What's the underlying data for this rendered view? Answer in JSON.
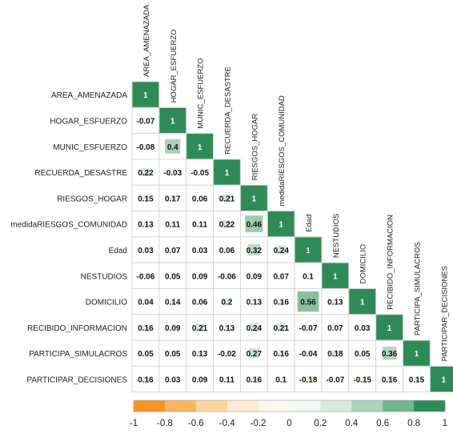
{
  "chart_data": {
    "type": "heatmap",
    "variables": [
      "AREA_AMENAZADA",
      "HOGAR_ESFUERZO",
      "MUNIC_ESFUERZO",
      "RECUERDA_DESASTRE",
      "RIESGOS_HOGAR",
      "medidaRIESGOS_COMUNIDAD",
      "Edad",
      "NESTUDIOS",
      "DOMICILIO",
      "RECIBIDO_INFORMACION",
      "PARTICIPA_SIMULACROS",
      "PARTICIPAR_DECISIONES"
    ],
    "matrix": [
      [
        1
      ],
      [
        -0.07,
        1
      ],
      [
        -0.08,
        0.4,
        1
      ],
      [
        0.22,
        -0.03,
        -0.05,
        1
      ],
      [
        0.15,
        0.17,
        0.06,
        0.21,
        1
      ],
      [
        0.13,
        0.11,
        0.11,
        0.22,
        0.46,
        1
      ],
      [
        0.03,
        0.07,
        0.03,
        0.06,
        0.32,
        0.24,
        1
      ],
      [
        -0.06,
        0.05,
        0.09,
        -0.06,
        0.09,
        0.07,
        0.1,
        1
      ],
      [
        0.04,
        0.14,
        0.06,
        0.2,
        0.13,
        0.16,
        0.56,
        0.13,
        1
      ],
      [
        0.16,
        0.09,
        0.21,
        0.13,
        0.24,
        0.21,
        -0.07,
        0.07,
        0.03,
        1
      ],
      [
        0.05,
        0.05,
        0.13,
        -0.02,
        0.27,
        0.16,
        -0.04,
        0.18,
        0.05,
        0.36,
        1
      ],
      [
        0.16,
        0.03,
        0.09,
        0.11,
        0.16,
        0.1,
        -0.18,
        -0.07,
        -0.15,
        0.16,
        0.15,
        1
      ]
    ],
    "colorbar": {
      "ticks": [
        "-1",
        "-0.8",
        "-0.6",
        "-0.4",
        "-0.2",
        "0",
        "0.2",
        "0.4",
        "0.6",
        "0.8",
        "1"
      ],
      "colors": [
        "#f79327",
        "#fbb562",
        "#fdd49c",
        "#feebd2",
        "#fef8ef",
        "#f2f8f4",
        "#d7ecdf",
        "#a8d4b7",
        "#6fb78b",
        "#2e8b57"
      ]
    },
    "value_range": [
      -1,
      1
    ],
    "legend_position": "bottom"
  }
}
